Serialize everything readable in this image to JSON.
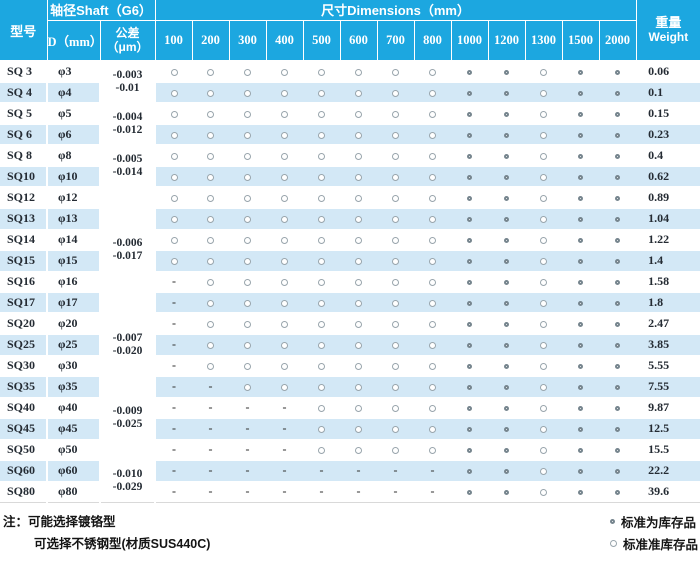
{
  "header": {
    "model": "型号",
    "shaft": "轴径Shaft（G6）",
    "d_label": "D（mm）",
    "tolerance_line1": "公差",
    "tolerance_line2": "（μm）",
    "dimensions": "尺寸Dimensions（mm）",
    "sizes": [
      "100",
      "200",
      "300",
      "400",
      "500",
      "600",
      "700",
      "800",
      "1000",
      "1200",
      "1300",
      "1500",
      "2000"
    ],
    "weight_cn": "重量",
    "weight_en": "Weight"
  },
  "table": {
    "groups": [
      {
        "tolerance": [
          "-0.003",
          "-0.01"
        ],
        "rows": [
          {
            "model": "SQ 3",
            "d": "φ3",
            "avail": [
              "o",
              "o",
              "o",
              "o",
              "o",
              "o",
              "o",
              "o",
              "O",
              "O",
              "o",
              "O",
              "O"
            ],
            "weight": "0.06"
          },
          {
            "model": "SQ 4",
            "d": "φ4",
            "avail": [
              "o",
              "o",
              "o",
              "o",
              "o",
              "o",
              "o",
              "o",
              "O",
              "O",
              "o",
              "O",
              "O"
            ],
            "weight": "0.1"
          }
        ]
      },
      {
        "tolerance": [
          "-0.004",
          "-0.012"
        ],
        "rows": [
          {
            "model": "SQ 5",
            "d": "φ5",
            "avail": [
              "o",
              "o",
              "o",
              "o",
              "o",
              "o",
              "o",
              "o",
              "O",
              "O",
              "o",
              "O",
              "O"
            ],
            "weight": "0.15"
          },
          {
            "model": "SQ 6",
            "d": "φ6",
            "avail": [
              "o",
              "o",
              "o",
              "o",
              "o",
              "o",
              "o",
              "o",
              "O",
              "O",
              "o",
              "O",
              "O"
            ],
            "weight": "0.23"
          }
        ]
      },
      {
        "tolerance": [
          "-0.005",
          "-0.014"
        ],
        "rows": [
          {
            "model": "SQ 8",
            "d": "φ8",
            "avail": [
              "o",
              "o",
              "o",
              "o",
              "o",
              "o",
              "o",
              "o",
              "O",
              "O",
              "o",
              "O",
              "O"
            ],
            "weight": "0.4"
          },
          {
            "model": "SQ10",
            "d": "φ10",
            "avail": [
              "o",
              "o",
              "o",
              "o",
              "o",
              "o",
              "o",
              "o",
              "O",
              "O",
              "o",
              "O",
              "O"
            ],
            "weight": "0.62"
          }
        ]
      },
      {
        "tolerance": [
          "-0.006",
          "-0.017"
        ],
        "rows": [
          {
            "model": "SQ12",
            "d": "φ12",
            "avail": [
              "o",
              "o",
              "o",
              "o",
              "o",
              "o",
              "o",
              "o",
              "O",
              "O",
              "o",
              "O",
              "O"
            ],
            "weight": "0.89"
          },
          {
            "model": "SQ13",
            "d": "φ13",
            "avail": [
              "o",
              "o",
              "o",
              "o",
              "o",
              "o",
              "o",
              "o",
              "O",
              "O",
              "o",
              "O",
              "O"
            ],
            "weight": "1.04"
          },
          {
            "model": "SQ14",
            "d": "φ14",
            "avail": [
              "o",
              "o",
              "o",
              "o",
              "o",
              "o",
              "o",
              "o",
              "O",
              "O",
              "o",
              "O",
              "O"
            ],
            "weight": "1.22"
          },
          {
            "model": "SQ15",
            "d": "φ15",
            "avail": [
              "o",
              "o",
              "o",
              "o",
              "o",
              "o",
              "o",
              "o",
              "O",
              "O",
              "o",
              "O",
              "O"
            ],
            "weight": "1.4"
          },
          {
            "model": "SQ16",
            "d": "φ16",
            "avail": [
              "-",
              "o",
              "o",
              "o",
              "o",
              "o",
              "o",
              "o",
              "O",
              "O",
              "o",
              "O",
              "O"
            ],
            "weight": "1.58"
          },
          {
            "model": "SQ17",
            "d": "φ17",
            "avail": [
              "-",
              "o",
              "o",
              "o",
              "o",
              "o",
              "o",
              "o",
              "O",
              "O",
              "o",
              "O",
              "O"
            ],
            "weight": "1.8"
          }
        ]
      },
      {
        "tolerance": [
          "-0.007",
          "-0.020"
        ],
        "rows": [
          {
            "model": "SQ20",
            "d": "φ20",
            "avail": [
              "-",
              "o",
              "o",
              "o",
              "o",
              "o",
              "o",
              "o",
              "O",
              "O",
              "o",
              "O",
              "O"
            ],
            "weight": "2.47"
          },
          {
            "model": "SQ25",
            "d": "φ25",
            "avail": [
              "-",
              "o",
              "o",
              "o",
              "o",
              "o",
              "o",
              "o",
              "O",
              "O",
              "o",
              "O",
              "O"
            ],
            "weight": "3.85"
          },
          {
            "model": "SQ30",
            "d": "φ30",
            "avail": [
              "-",
              "o",
              "o",
              "o",
              "o",
              "o",
              "o",
              "o",
              "O",
              "O",
              "o",
              "O",
              "O"
            ],
            "weight": "5.55"
          }
        ]
      },
      {
        "tolerance": [
          "-0.009",
          "-0.025"
        ],
        "rows": [
          {
            "model": "SQ35",
            "d": "φ35",
            "avail": [
              "-",
              "-",
              "o",
              "o",
              "o",
              "o",
              "o",
              "o",
              "O",
              "O",
              "o",
              "O",
              "O"
            ],
            "weight": "7.55"
          },
          {
            "model": "SQ40",
            "d": "φ40",
            "avail": [
              "-",
              "-",
              "-",
              "-",
              "o",
              "o",
              "o",
              "o",
              "O",
              "O",
              "o",
              "O",
              "O"
            ],
            "weight": "9.87"
          },
          {
            "model": "SQ45",
            "d": "φ45",
            "avail": [
              "-",
              "-",
              "-",
              "-",
              "o",
              "o",
              "o",
              "o",
              "O",
              "O",
              "o",
              "O",
              "O"
            ],
            "weight": "12.5"
          },
          {
            "model": "SQ50",
            "d": "φ50",
            "avail": [
              "-",
              "-",
              "-",
              "-",
              "o",
              "o",
              "o",
              "o",
              "O",
              "O",
              "o",
              "O",
              "O"
            ],
            "weight": "15.5"
          }
        ]
      },
      {
        "tolerance": [
          "-0.010",
          "-0.029"
        ],
        "rows": [
          {
            "model": "SQ60",
            "d": "φ60",
            "avail": [
              "-",
              "-",
              "-",
              "-",
              "-",
              "-",
              "-",
              "-",
              "O",
              "O",
              "o",
              "O",
              "O"
            ],
            "weight": "22.2"
          },
          {
            "model": "SQ80",
            "d": "φ80",
            "avail": [
              "-",
              "-",
              "-",
              "-",
              "-",
              "-",
              "-",
              "-",
              "O",
              "O",
              "o",
              "O",
              "O"
            ],
            "weight": "39.6"
          }
        ]
      }
    ]
  },
  "notes": {
    "prefix": "注：",
    "line1": "可能选择镀铬型",
    "line2": "可选择不锈钢型(材质SUS440C)"
  },
  "legend": [
    {
      "symbol": "standard-stock",
      "label": "标准为库存品"
    },
    {
      "symbol": "semi-standard-stock",
      "label": "标准准库存品"
    }
  ],
  "colors": {
    "header_bg": "#1CA7E0",
    "row_stripe": "#D3E8F6",
    "circle_light": "#99A5AC",
    "circle_bold": "#76858E"
  }
}
